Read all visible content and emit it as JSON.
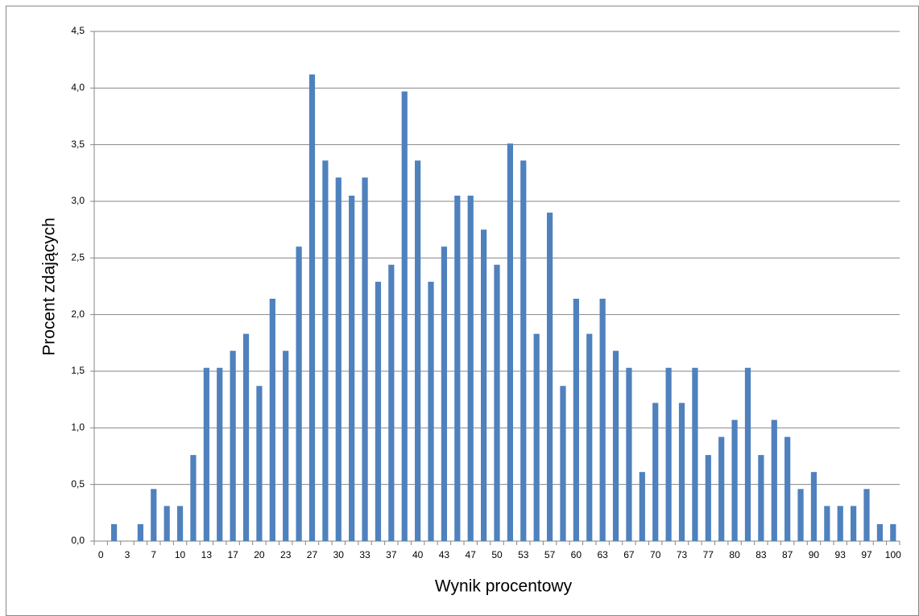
{
  "chart_data": {
    "type": "bar",
    "x_label": "Wynik procentowy",
    "y_label": "Procent zdających",
    "categories": [
      "0",
      null,
      "3",
      null,
      "7",
      null,
      "10",
      null,
      "13",
      null,
      "17",
      null,
      "20",
      null,
      "23",
      null,
      "27",
      null,
      "30",
      null,
      "33",
      null,
      "37",
      null,
      "40",
      null,
      "43",
      null,
      "47",
      null,
      "50",
      null,
      "53",
      null,
      "57",
      null,
      "60",
      null,
      "63",
      null,
      "67",
      null,
      "70",
      null,
      "73",
      null,
      "77",
      null,
      "80",
      null,
      "83",
      null,
      "87",
      null,
      "90",
      null,
      "93",
      null,
      "97",
      null,
      "100"
    ],
    "values": [
      0,
      0.15,
      0,
      0.15,
      0.46,
      0.31,
      0.31,
      0.76,
      1.53,
      1.53,
      1.68,
      1.83,
      1.37,
      2.14,
      1.68,
      2.6,
      4.12,
      3.36,
      3.21,
      3.05,
      3.21,
      2.29,
      2.44,
      3.97,
      3.36,
      2.29,
      2.6,
      3.05,
      3.05,
      2.75,
      2.44,
      3.51,
      3.36,
      1.83,
      2.9,
      1.37,
      2.14,
      1.83,
      2.14,
      1.68,
      1.53,
      0.61,
      1.22,
      1.53,
      1.22,
      1.53,
      0.76,
      0.92,
      1.07,
      1.53,
      0.76,
      1.07,
      0.92,
      0.46,
      0.61,
      0.31,
      0.31,
      0.31,
      0.46,
      0.15,
      0.15
    ],
    "color": "#4f81bd",
    "ylim": [
      0,
      4.5
    ],
    "yticks": [
      {
        "value": 0,
        "label": "0,0"
      },
      {
        "value": 0.5,
        "label": "0,5"
      },
      {
        "value": 1,
        "label": "1,0"
      },
      {
        "value": 1.5,
        "label": "1,5"
      },
      {
        "value": 2,
        "label": "2,0"
      },
      {
        "value": 2.5,
        "label": "2,5"
      },
      {
        "value": 3,
        "label": "3,0"
      },
      {
        "value": 3.5,
        "label": "3,5"
      },
      {
        "value": 4,
        "label": "4,0"
      },
      {
        "value": 4.5,
        "label": "4,5"
      }
    ],
    "grid": true
  }
}
